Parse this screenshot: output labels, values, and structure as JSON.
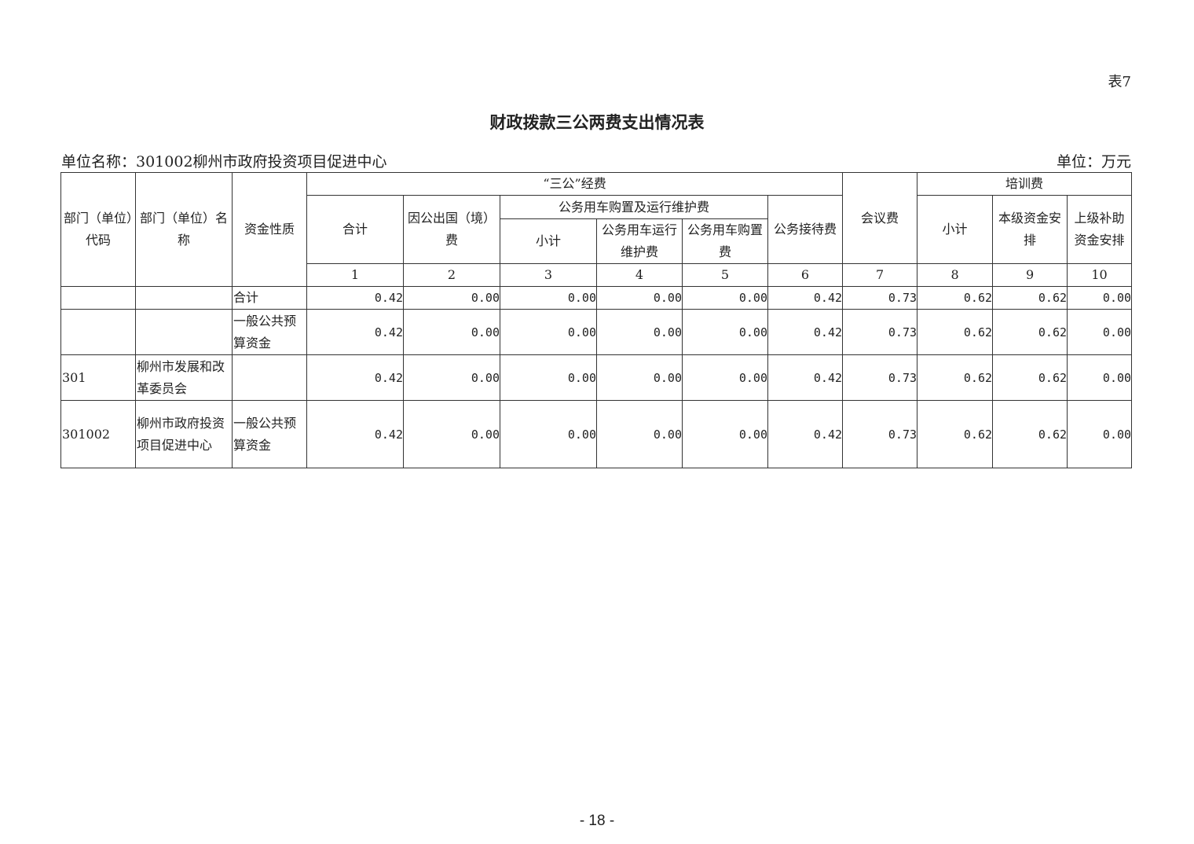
{
  "table_no": "表7",
  "title": "财政拨款三公两费支出情况表",
  "unit_name": "单位名称：301002柳州市政府投资项目促进中心",
  "unit": "单位：万元",
  "headers": {
    "dept_code": "部门（单位）代码",
    "dept_name": "部门（单位）名称",
    "fund_type": "资金性质",
    "sangong": "“三公”经费",
    "total": "合计",
    "abroad": "因公出国（境）费",
    "car": "公务用车购置及运行维护费",
    "car_subtotal": "小计",
    "car_run": "公务用车运行维护费",
    "car_buy": "公务用车购置费",
    "reception": "公务接待费",
    "meeting": "会议费",
    "training": "培训费",
    "train_subtotal": "小计",
    "train_local": "本级资金安排",
    "train_upper": "上级补助资金安排",
    "col_numbers": [
      "1",
      "2",
      "3",
      "4",
      "5",
      "6",
      "7",
      "8",
      "9",
      "10"
    ]
  },
  "rows": [
    {
      "code": "",
      "name": "",
      "fund": "合计",
      "values": [
        "0.42",
        "0.00",
        "0.00",
        "0.00",
        "0.00",
        "0.42",
        "0.73",
        "0.62",
        "0.62",
        "0.00"
      ]
    },
    {
      "code": "",
      "name": "",
      "fund": "一般公共预算资金",
      "values": [
        "0.42",
        "0.00",
        "0.00",
        "0.00",
        "0.00",
        "0.42",
        "0.73",
        "0.62",
        "0.62",
        "0.00"
      ]
    },
    {
      "code": "301",
      "name": "柳州市发展和改革委员会",
      "fund": "",
      "values": [
        "0.42",
        "0.00",
        "0.00",
        "0.00",
        "0.00",
        "0.42",
        "0.73",
        "0.62",
        "0.62",
        "0.00"
      ]
    },
    {
      "code": "301002",
      "name": "柳州市政府投资项目促进中心",
      "fund": "一般公共预算资金",
      "values": [
        "0.42",
        "0.00",
        "0.00",
        "0.00",
        "0.00",
        "0.42",
        "0.73",
        "0.62",
        "0.62",
        "0.00"
      ]
    }
  ],
  "page_number": "- 18 -"
}
